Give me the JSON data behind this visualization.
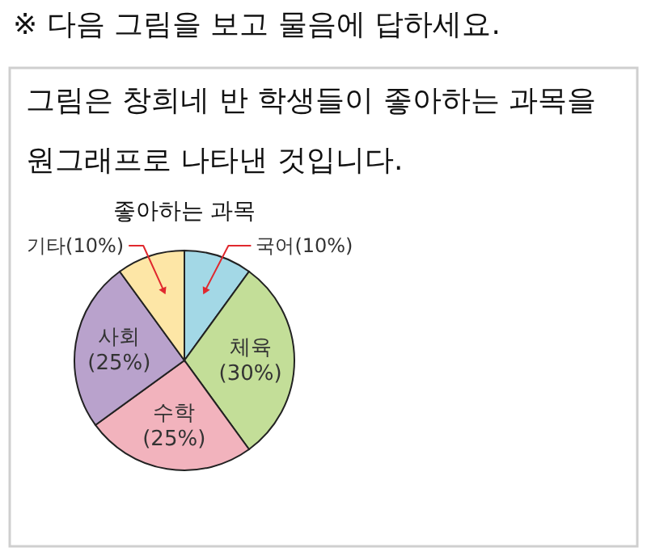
{
  "chart_data": {
    "type": "pie",
    "title": "좋아하는 과목",
    "annotations": [
      "※ 다음 그림을 보고 물음에 답하세요.",
      "그림은 창희네 반 학생들이 좋아하는 과목을",
      "원그래프로 나타낸 것입니다."
    ],
    "categories": [
      "국어",
      "체육",
      "수학",
      "사회",
      "기타"
    ],
    "values": [
      10,
      30,
      25,
      25,
      10
    ],
    "value_labels": [
      "(10%)",
      "(30%)",
      "(25%)",
      "(25%)",
      "(10%)"
    ],
    "colors": [
      "#a3d8e6",
      "#c3de98",
      "#f2b3bd",
      "#b9a2cc",
      "#fde6a6"
    ]
  }
}
